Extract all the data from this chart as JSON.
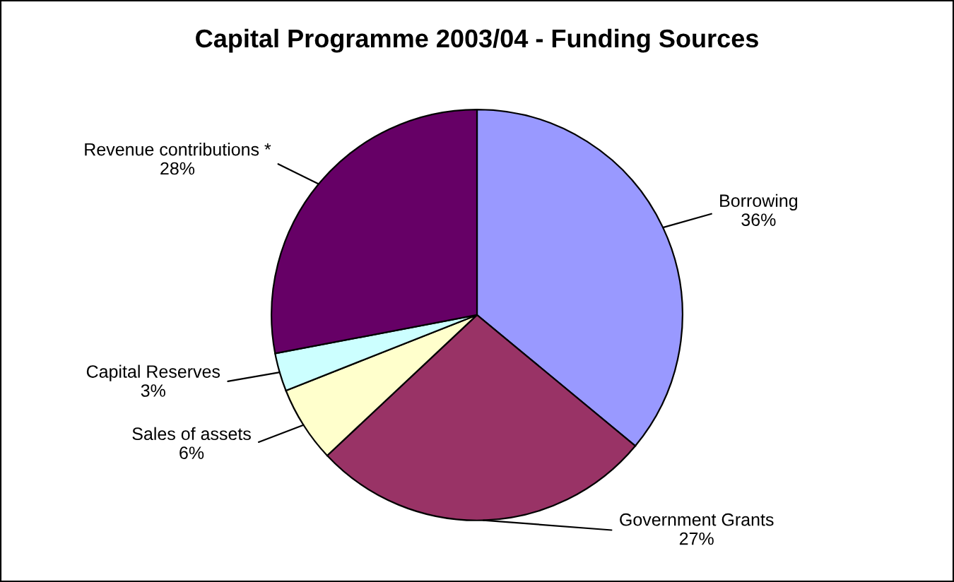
{
  "chart_data": {
    "type": "pie",
    "title": "Capital Programme 2003/04 - Funding Sources",
    "categories": [
      "Borrowing",
      "Government Grants",
      "Sales of assets",
      "Capital Reserves",
      "Revenue contributions *"
    ],
    "values": [
      36,
      27,
      6,
      3,
      28
    ],
    "value_labels": [
      "36%",
      "27%",
      "6%",
      "3%",
      "28%"
    ],
    "colors": [
      "#9999ff",
      "#993366",
      "#ffffcc",
      "#ccffff",
      "#660066"
    ],
    "legend": false
  }
}
